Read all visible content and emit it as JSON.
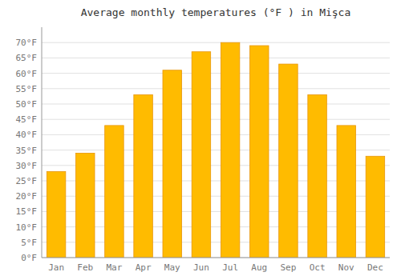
{
  "chart_data": {
    "type": "bar",
    "title": "Average monthly temperatures (°F ) in Mişca",
    "categories": [
      "Jan",
      "Feb",
      "Mar",
      "Apr",
      "May",
      "Jun",
      "Jul",
      "Aug",
      "Sep",
      "Oct",
      "Nov",
      "Dec"
    ],
    "values": [
      28,
      34,
      43,
      53,
      61,
      67,
      70,
      69,
      63,
      53,
      43,
      33
    ],
    "color": "#FFBB00",
    "ylim": [
      0,
      75
    ],
    "yticks": [
      {
        "value": 0,
        "label": "0°F"
      },
      {
        "value": 5,
        "label": "5°F"
      },
      {
        "value": 10,
        "label": "10°F"
      },
      {
        "value": 15,
        "label": "15°F"
      },
      {
        "value": 20,
        "label": "20°F"
      },
      {
        "value": 25,
        "label": "25°F"
      },
      {
        "value": 30,
        "label": "30°F"
      },
      {
        "value": 35,
        "label": "35°F"
      },
      {
        "value": 40,
        "label": "40°F"
      },
      {
        "value": 45,
        "label": "45°F"
      },
      {
        "value": 50,
        "label": "50°F"
      },
      {
        "value": 55,
        "label": "55°F"
      },
      {
        "value": 60,
        "label": "60°F"
      },
      {
        "value": 65,
        "label": "65°F"
      },
      {
        "value": 70,
        "label": "70°F"
      }
    ],
    "grid": true
  }
}
